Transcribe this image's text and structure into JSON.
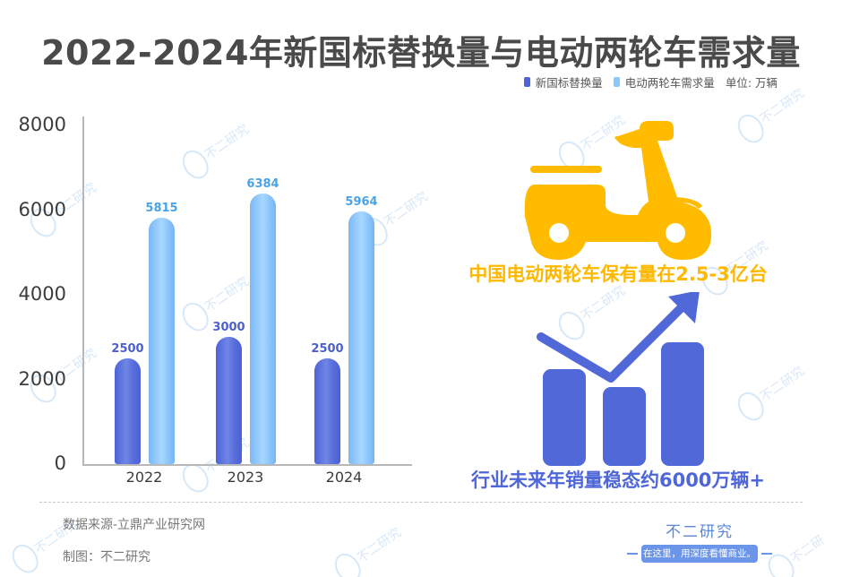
{
  "title": "2022-2024年新国标替换量与电动两轮车需求量",
  "legend": {
    "items": [
      {
        "label": "新国标替换量",
        "color": "#4d63d6"
      },
      {
        "label": "电动两轮车需求量",
        "color": "#8cc6fa"
      }
    ],
    "unit": "单位: 万辆"
  },
  "chart_data": {
    "type": "bar",
    "title": "2022-2024年新国标替换量与电动两轮车需求量",
    "xlabel": "",
    "ylabel": "万辆",
    "categories": [
      "2022",
      "2023",
      "2024"
    ],
    "series": [
      {
        "name": "新国标替换量",
        "values": [
          2500,
          3000,
          2500
        ],
        "color": "#4d63d6"
      },
      {
        "name": "电动两轮车需求量",
        "values": [
          5815,
          6384,
          5964
        ],
        "color": "#8cc6fa"
      }
    ],
    "ylim": [
      0,
      8000
    ],
    "yticks": [
      "0",
      "2000",
      "4000",
      "6000",
      "8000"
    ],
    "grid": false,
    "legend_position": "top-right"
  },
  "right_panel": {
    "scooter_icon": "scooter-icon",
    "scooter_color": "#ffbb00",
    "stat1": "中国电动两轮车保有量在2.5-3亿台",
    "growth_icon": "growth-chart-icon",
    "growth_color": "#5068d8",
    "stat2": "行业未来年销量稳态约6000万辆+"
  },
  "footer": {
    "source": "数据来源-立鼎产业研究网",
    "maker": "制图：不二研究",
    "brand_name": "不二研究",
    "brand_slogan": "在这里，用深度看懂商业。"
  },
  "watermark": "不二研究"
}
